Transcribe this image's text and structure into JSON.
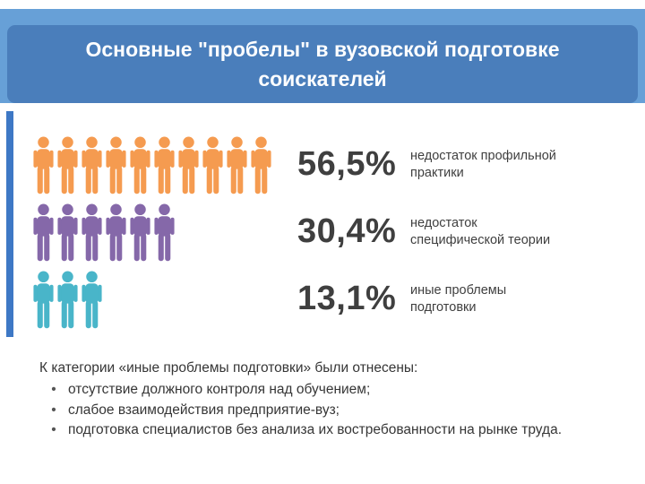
{
  "header": {
    "title": "Основные \"пробелы\" в вузовской подготовке соискателей"
  },
  "chart_data": {
    "type": "pictogram",
    "title": "Основные \"пробелы\" в вузовской подготовке соискателей",
    "categories": [
      "недостаток профильной практики",
      "недостаток специфической теории",
      "иные проблемы подготовки"
    ],
    "values": [
      56.5,
      30.4,
      13.1
    ],
    "unit": "%",
    "icon": "person-pictogram",
    "legend_position": "none",
    "rows": [
      {
        "value": 56.5,
        "value_label": "56,5%",
        "label": "недостаток профильной практики",
        "icon_count": 10,
        "color": "#F59B50"
      },
      {
        "value": 30.4,
        "value_label": "30,4%",
        "label": "недостаток специфической теории",
        "icon_count": 6,
        "color": "#8568A9"
      },
      {
        "value": 13.1,
        "value_label": "13,1%",
        "label": "иные проблемы подготовки",
        "icon_count": 3,
        "color": "#49B5C9"
      }
    ]
  },
  "footer": {
    "intro": "К категории «иные проблемы подготовки» были отнесены:",
    "bullets": [
      "отсутствие должного контроля над обучением;",
      "слабое взаимодействия предприятие-вуз;",
      "подготовка специалистов без анализа их востребованности на рынке труда."
    ]
  },
  "colors": {
    "header_band": "#67A0D7",
    "title_box": "#4A7EBB",
    "accent_stripe": "#3E78C5",
    "orange": "#F59B50",
    "purple": "#8568A9",
    "teal": "#49B5C9",
    "text": "#3F3F3F"
  }
}
